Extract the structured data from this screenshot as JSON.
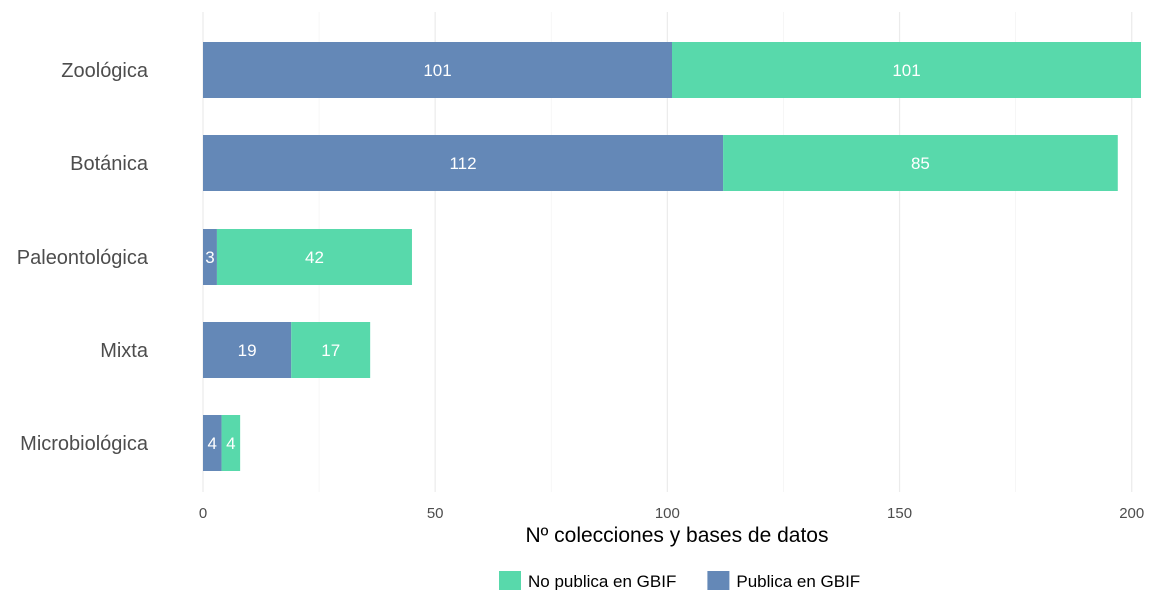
{
  "chart_data": {
    "type": "bar",
    "orientation": "horizontal",
    "stacked": true,
    "categories": [
      "Zoológica",
      "Botánica",
      "Paleontológica",
      "Mixta",
      "Microbiológica"
    ],
    "series": [
      {
        "name": "Publica en GBIF",
        "values": [
          101,
          112,
          3,
          19,
          4
        ],
        "color": "#6488b7"
      },
      {
        "name": "No publica en GBIF",
        "values": [
          101,
          85,
          42,
          17,
          4
        ],
        "color": "#58d9ab"
      }
    ],
    "xlabel": "Nº colecciones y bases de datos",
    "ylabel": "",
    "title": "",
    "xlim": [
      0,
      202
    ],
    "xticks": [
      0,
      50,
      100,
      150,
      200
    ],
    "grid": true,
    "legend": {
      "position": "bottom",
      "items": [
        {
          "label": "No publica en GBIF",
          "color": "#58d9ab"
        },
        {
          "label": "Publica en GBIF",
          "color": "#6488b7"
        }
      ]
    }
  }
}
